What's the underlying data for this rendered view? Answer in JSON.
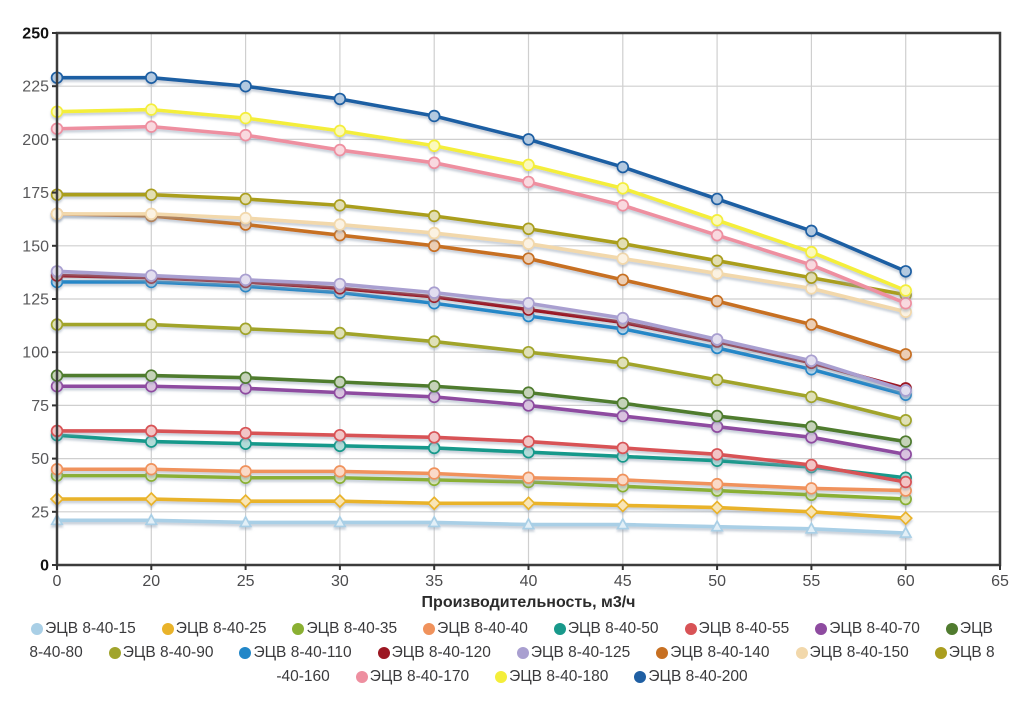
{
  "axis": {
    "x_title": "Производительность, м3/ч",
    "x_tick_labels": [
      "0",
      "20",
      "25",
      "30",
      "35",
      "40",
      "45",
      "50",
      "55",
      "60",
      "65"
    ],
    "y_tick_min": 0,
    "y_tick_max": 250,
    "y_tick_step": 25,
    "y_bold_ticks": [
      0,
      250
    ],
    "grid_color": "#cfcfcf",
    "border_color": "#3c3c3c",
    "tick_color": "#333333"
  },
  "chart_data": {
    "type": "line",
    "title": "",
    "xlabel": "Производительность, м3/ч",
    "ylabel": "",
    "ylim": [
      0,
      250
    ],
    "grid": true,
    "legend_position": "bottom",
    "x": [
      0,
      20,
      25,
      30,
      35,
      40,
      45,
      50,
      55,
      60
    ],
    "series": [
      {
        "name": "ЭЦВ 8-40-15",
        "color": "#a9cfe6",
        "marker": "triangle",
        "values": [
          21,
          21,
          20,
          20,
          20,
          19,
          19,
          18,
          17,
          15
        ]
      },
      {
        "name": "ЭЦВ 8-40-25",
        "color": "#e9b32a",
        "marker": "diamond",
        "values": [
          31,
          31,
          30,
          30,
          29,
          29,
          28,
          27,
          25,
          22
        ]
      },
      {
        "name": "ЭЦВ 8-40-35",
        "color": "#8ab032",
        "marker": "circle",
        "values": [
          42,
          42,
          41,
          41,
          40,
          39,
          37,
          35,
          33,
          31
        ]
      },
      {
        "name": "ЭЦВ 8-40-40",
        "color": "#f0925c",
        "marker": "circle",
        "values": [
          45,
          45,
          44,
          44,
          43,
          41,
          40,
          38,
          36,
          35
        ]
      },
      {
        "name": "ЭЦВ 8-40-50",
        "color": "#18998b",
        "marker": "circle",
        "values": [
          61,
          58,
          57,
          56,
          55,
          53,
          51,
          49,
          46,
          41
        ]
      },
      {
        "name": "ЭЦВ 8-40-55",
        "color": "#d85356",
        "marker": "circle",
        "values": [
          63,
          63,
          62,
          61,
          60,
          58,
          55,
          52,
          47,
          39
        ]
      },
      {
        "name": "ЭЦВ 8-40-70",
        "color": "#8e4ba0",
        "marker": "circle",
        "values": [
          84,
          84,
          83,
          81,
          79,
          75,
          70,
          65,
          60,
          52
        ]
      },
      {
        "name": "ЭЦВ 8-40-80",
        "color": "#507b2f",
        "marker": "circle",
        "values": [
          89,
          89,
          88,
          86,
          84,
          81,
          76,
          70,
          65,
          58
        ]
      },
      {
        "name": "ЭЦВ 8-40-90",
        "color": "#a1a42c",
        "marker": "circle",
        "values": [
          113,
          113,
          111,
          109,
          105,
          100,
          95,
          87,
          79,
          68
        ]
      },
      {
        "name": "ЭЦВ 8-40-110",
        "color": "#2287c8",
        "marker": "circle",
        "values": [
          133,
          133,
          131,
          128,
          123,
          117,
          111,
          102,
          92,
          80
        ]
      },
      {
        "name": "ЭЦВ 8-40-120",
        "color": "#9c1722",
        "marker": "circle",
        "values": [
          136,
          135,
          133,
          130,
          126,
          120,
          114,
          105,
          95,
          83
        ]
      },
      {
        "name": "ЭЦВ 8-40-125",
        "color": "#a99fd0",
        "marker": "circle",
        "values": [
          138,
          136,
          134,
          132,
          128,
          123,
          116,
          106,
          96,
          82
        ]
      },
      {
        "name": "ЭЦВ 8-40-140",
        "color": "#c77022",
        "marker": "circle",
        "values": [
          165,
          164,
          160,
          155,
          150,
          144,
          134,
          124,
          113,
          99
        ]
      },
      {
        "name": "ЭЦВ 8-40-150",
        "color": "#f2d8ab",
        "marker": "circle",
        "values": [
          165,
          165,
          163,
          160,
          156,
          151,
          144,
          137,
          130,
          119
        ]
      },
      {
        "name": "ЭЦВ 8-40-160",
        "color": "#aa9e1f",
        "marker": "circle",
        "values": [
          174,
          174,
          172,
          169,
          164,
          158,
          151,
          143,
          135,
          127
        ]
      },
      {
        "name": "ЭЦВ 8-40-170",
        "color": "#ee8fa0",
        "marker": "circle",
        "values": [
          205,
          206,
          202,
          195,
          189,
          180,
          169,
          155,
          141,
          123
        ]
      },
      {
        "name": "ЭЦВ 8-40-180",
        "color": "#f4ee3a",
        "marker": "circle",
        "values": [
          213,
          214,
          210,
          204,
          197,
          188,
          177,
          162,
          147,
          129
        ]
      },
      {
        "name": "ЭЦВ 8-40-200",
        "color": "#1f5fa3",
        "marker": "circle",
        "values": [
          229,
          229,
          225,
          219,
          211,
          200,
          187,
          172,
          157,
          138
        ]
      }
    ]
  },
  "legend": {
    "rows": [
      [
        {
          "dot": "#a9cfe6",
          "text": "ЭЦВ 8-40-15"
        },
        {
          "dot": "#e9b32a",
          "text": "ЭЦВ 8-40-25"
        },
        {
          "dot": "#8ab032",
          "text": "ЭЦВ 8-40-35"
        },
        {
          "dot": "#f0925c",
          "text": "ЭЦВ 8-40-40"
        },
        {
          "dot": "#18998b",
          "text": "ЭЦВ 8-40-50"
        },
        {
          "dot": "#d85356",
          "text": "ЭЦВ 8-40-55"
        },
        {
          "dot": "#8e4ba0",
          "text": "ЭЦВ 8-40-70"
        },
        {
          "dot": "#507b2f",
          "text": "ЭЦВ"
        }
      ],
      [
        {
          "dot": null,
          "text": "8-40-80"
        },
        {
          "dot": "#a1a42c",
          "text": "ЭЦВ 8-40-90"
        },
        {
          "dot": "#2287c8",
          "text": "ЭЦВ 8-40-110"
        },
        {
          "dot": "#9c1722",
          "text": "ЭЦВ 8-40-120"
        },
        {
          "dot": "#a99fd0",
          "text": "ЭЦВ 8-40-125"
        },
        {
          "dot": "#c77022",
          "text": "ЭЦВ 8-40-140"
        },
        {
          "dot": "#f2d8ab",
          "text": "ЭЦВ 8-40-150"
        },
        {
          "dot": "#aa9e1f",
          "text": "ЭЦВ 8"
        }
      ],
      [
        {
          "dot": null,
          "text": "-40-160"
        },
        {
          "dot": "#ee8fa0",
          "text": "ЭЦВ 8-40-170"
        },
        {
          "dot": "#f4ee3a",
          "text": "ЭЦВ 8-40-180"
        },
        {
          "dot": "#1f5fa3",
          "text": "ЭЦВ 8-40-200"
        }
      ]
    ]
  }
}
